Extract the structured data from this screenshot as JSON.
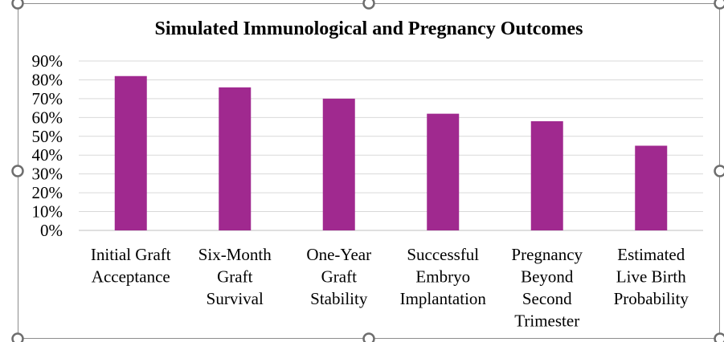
{
  "chart_data": {
    "type": "bar",
    "title": "Simulated Immunological and Pregnancy Outcomes",
    "categories": [
      [
        "Initial Graft",
        "Acceptance"
      ],
      [
        "Six-Month",
        "Graft",
        "Survival"
      ],
      [
        "One-Year",
        "Graft",
        "Stability"
      ],
      [
        "Successful",
        "Embryo",
        "Implantation"
      ],
      [
        "Pregnancy",
        "Beyond",
        "Second",
        "Trimester"
      ],
      [
        "Estimated",
        "Live Birth",
        "Probability"
      ]
    ],
    "values": [
      82,
      76,
      70,
      62,
      58,
      45
    ],
    "ylim": [
      0,
      90
    ],
    "yticks": [
      0,
      10,
      20,
      30,
      40,
      50,
      60,
      70,
      80,
      90
    ],
    "ytick_format": "percent",
    "grid": true,
    "bar_color": "#a0298f",
    "grid_color": "#d9d9d9"
  }
}
